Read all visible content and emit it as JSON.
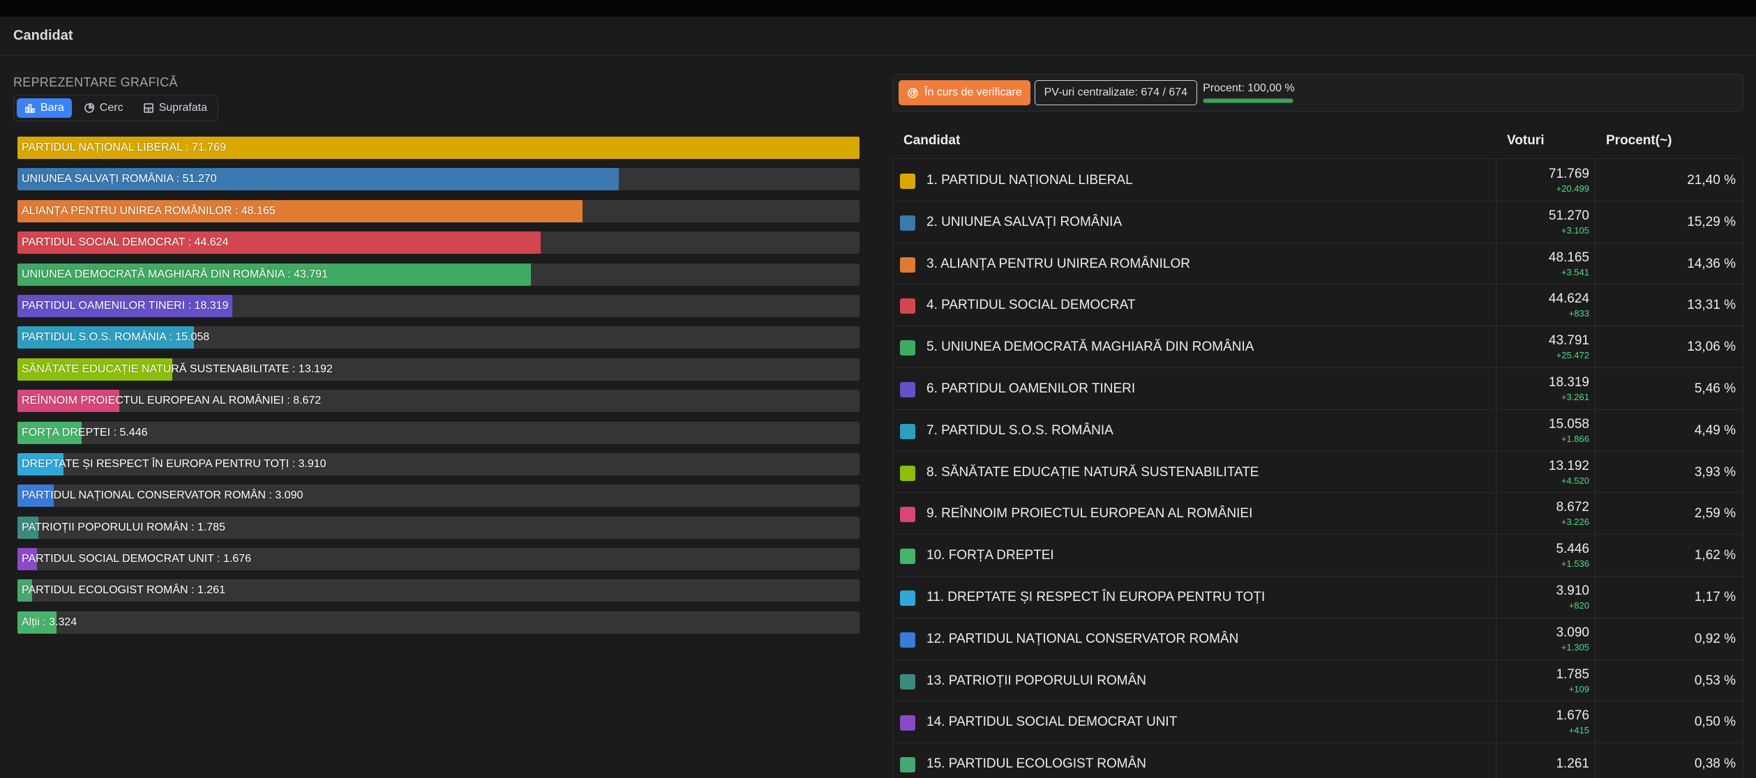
{
  "header": {
    "title": "Candidat"
  },
  "left": {
    "section_label": "REPREZENTARE GRAFICĂ",
    "tabs": [
      {
        "label": "Bara",
        "icon": "bar-chart-icon",
        "active": true
      },
      {
        "label": "Cerc",
        "icon": "pie-chart-icon",
        "active": false
      },
      {
        "label": "Suprafata",
        "icon": "area-chart-icon",
        "active": false
      }
    ]
  },
  "chart_data": {
    "type": "bar",
    "orientation": "horizontal",
    "categories": [
      "PARTIDUL NAȚIONAL LIBERAL",
      "UNIUNEA SALVAȚI ROMÂNIA",
      "ALIANȚA PENTRU UNIREA ROMÂNILOR",
      "PARTIDUL SOCIAL DEMOCRAT",
      "UNIUNEA DEMOCRATĂ MAGHIARĂ DIN ROMÂNIA",
      "PARTIDUL OAMENILOR TINERI",
      "PARTIDUL S.O.S. ROMÂNIA",
      "SĂNĂTATE EDUCAȚIE NATURĂ SUSTENABILITATE",
      "REÎNNOIM PROIECTUL EUROPEAN AL ROMÂNIEI",
      "FORȚA DREPTEI",
      "DREPTATE ȘI RESPECT ÎN EUROPA PENTRU TOȚI",
      "PARTIDUL NAȚIONAL CONSERVATOR ROMÂN",
      "PATRIOȚII POPORULUI ROMÂN",
      "PARTIDUL SOCIAL DEMOCRAT UNIT",
      "PARTIDUL ECOLOGIST ROMÂN",
      "Alții"
    ],
    "values": [
      71769,
      51270,
      48165,
      44624,
      43791,
      18319,
      15058,
      13192,
      8672,
      5446,
      3910,
      3090,
      1785,
      1676,
      1261,
      3324
    ],
    "labels": [
      "PARTIDUL NAȚIONAL LIBERAL : 71.769",
      "UNIUNEA SALVAȚI ROMÂNIA : 51.270",
      "ALIANȚA PENTRU UNIREA ROMÂNILOR : 48.165",
      "PARTIDUL SOCIAL DEMOCRAT : 44.624",
      "UNIUNEA DEMOCRATĂ MAGHIARĂ DIN ROMÂNIA : 43.791",
      "PARTIDUL OAMENILOR TINERI : 18.319",
      "PARTIDUL S.O.S. ROMÂNIA : 15.058",
      "SĂNĂTATE EDUCAȚIE NATURĂ SUSTENABILITATE : 13.192",
      "REÎNNOIM PROIECTUL EUROPEAN AL ROMÂNIEI : 8.672",
      "FORȚA DREPTEI : 5.446",
      "DREPTATE ȘI RESPECT ÎN EUROPA PENTRU TOȚI : 3.910",
      "PARTIDUL NAȚIONAL CONSERVATOR ROMÂN : 3.090",
      "PATRIOȚII POPORULUI ROMÂN : 1.785",
      "PARTIDUL SOCIAL DEMOCRAT UNIT : 1.676",
      "PARTIDUL ECOLOGIST ROMÂN : 1.261",
      "Alții : 3.324"
    ],
    "colors": [
      "#d9a800",
      "#3a78b0",
      "#e07b34",
      "#d4464f",
      "#3faa62",
      "#6650c8",
      "#2d9ec0",
      "#8cbf0a",
      "#d8457a",
      "#46b36a",
      "#2fa8d8",
      "#3a7ad8",
      "#3a8a80",
      "#8a4ac8",
      "#46a870",
      "#46b36a"
    ],
    "xlim": [
      0,
      71769
    ]
  },
  "status": {
    "badge_label": "În curs de verificare",
    "badge_icon": "radar-icon",
    "pv_label": "PV-uri centralizate: 674 / 674",
    "percent_label": "Procent: 100,00 %",
    "percent_value": 100
  },
  "table": {
    "headers": {
      "candidate": "Candidat",
      "votes": "Voturi",
      "percent": "Procent(~)"
    },
    "rows": [
      {
        "name": "1. PARTIDUL NAȚIONAL LIBERAL",
        "votes": "71.769",
        "delta": "+20.499",
        "percent": "21,40 %",
        "color": "#d9a800"
      },
      {
        "name": "2. UNIUNEA SALVAȚI ROMÂNIA",
        "votes": "51.270",
        "delta": "+3.105",
        "percent": "15,29 %",
        "color": "#3a78b0"
      },
      {
        "name": "3. ALIANȚA PENTRU UNIREA ROMÂNILOR",
        "votes": "48.165",
        "delta": "+3.541",
        "percent": "14,36 %",
        "color": "#e07b34"
      },
      {
        "name": "4. PARTIDUL SOCIAL DEMOCRAT",
        "votes": "44.624",
        "delta": "+833",
        "percent": "13,31 %",
        "color": "#d4464f"
      },
      {
        "name": "5. UNIUNEA DEMOCRATĂ MAGHIARĂ DIN ROMÂNIA",
        "votes": "43.791",
        "delta": "+25.472",
        "percent": "13,06 %",
        "color": "#3faa62"
      },
      {
        "name": "6. PARTIDUL OAMENILOR TINERI",
        "votes": "18.319",
        "delta": "+3.261",
        "percent": "5,46 %",
        "color": "#6650c8"
      },
      {
        "name": "7. PARTIDUL S.O.S. ROMÂNIA",
        "votes": "15.058",
        "delta": "+1.866",
        "percent": "4,49 %",
        "color": "#2d9ec0"
      },
      {
        "name": "8. SĂNĂTATE EDUCAȚIE NATURĂ SUSTENABILITATE",
        "votes": "13.192",
        "delta": "+4.520",
        "percent": "3,93 %",
        "color": "#8cbf0a"
      },
      {
        "name": "9. REÎNNOIM PROIECTUL EUROPEAN AL ROMÂNIEI",
        "votes": "8.672",
        "delta": "+3.226",
        "percent": "2,59 %",
        "color": "#d8457a"
      },
      {
        "name": "10. FORȚA DREPTEI",
        "votes": "5.446",
        "delta": "+1.536",
        "percent": "1,62 %",
        "color": "#46b36a"
      },
      {
        "name": "11. DREPTATE ȘI RESPECT ÎN EUROPA PENTRU TOȚI",
        "votes": "3.910",
        "delta": "+820",
        "percent": "1,17 %",
        "color": "#2fa8d8"
      },
      {
        "name": "12. PARTIDUL NAȚIONAL CONSERVATOR ROMÂN",
        "votes": "3.090",
        "delta": "+1.305",
        "percent": "0,92 %",
        "color": "#3a7ad8"
      },
      {
        "name": "13. PATRIOȚII POPORULUI ROMÂN",
        "votes": "1.785",
        "delta": "+109",
        "percent": "0,53 %",
        "color": "#3a8a80"
      },
      {
        "name": "14. PARTIDUL SOCIAL DEMOCRAT UNIT",
        "votes": "1.676",
        "delta": "+415",
        "percent": "0,50 %",
        "color": "#8a4ac8"
      },
      {
        "name": "15. PARTIDUL ECOLOGIST ROMÂN",
        "votes": "1.261",
        "delta": "",
        "percent": "0,38 %",
        "color": "#46a870"
      }
    ]
  }
}
